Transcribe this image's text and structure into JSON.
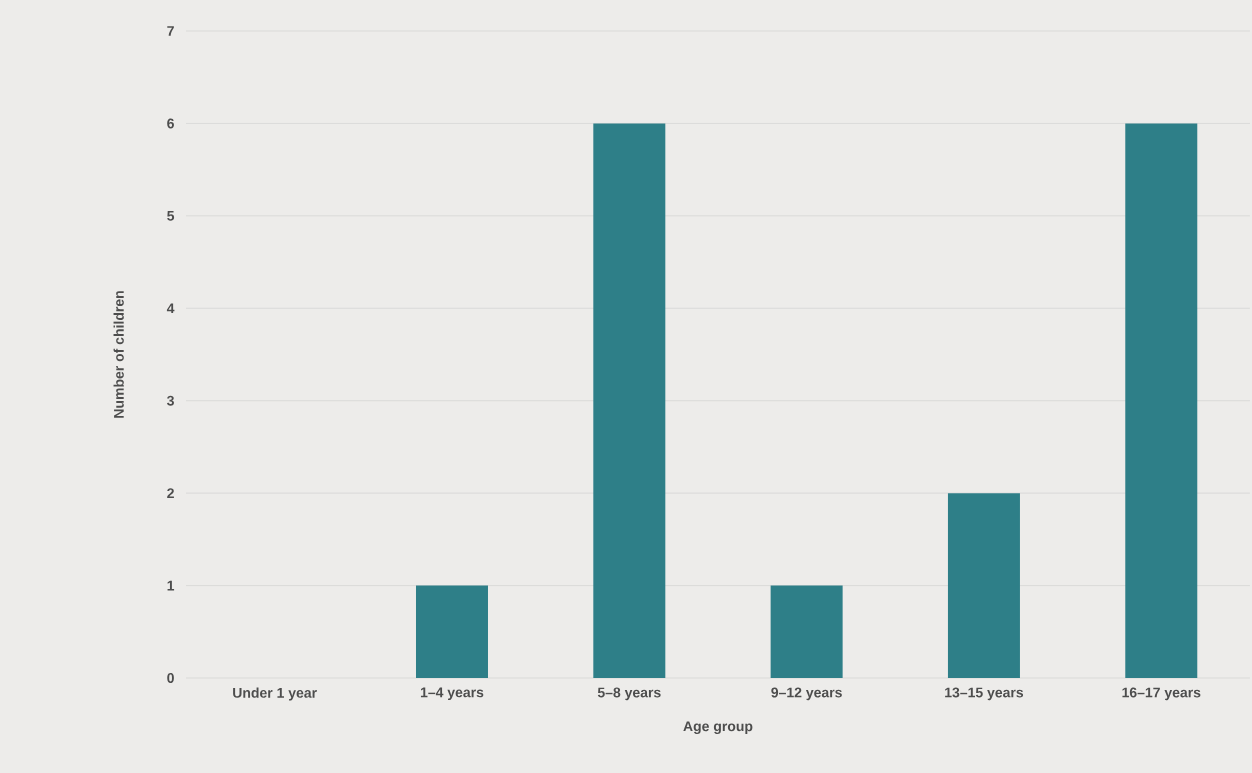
{
  "chart_data": {
    "type": "bar",
    "categories": [
      "Under 1 year",
      "1–4 years",
      "5–8 years",
      "9–12 years",
      "13–15 years",
      "16–17 years"
    ],
    "values": [
      0,
      1,
      6,
      1,
      2,
      6
    ],
    "color": "#2e7f88",
    "xlabel": "Age group",
    "ylabel": "Number of children",
    "ylim": [
      0,
      7
    ],
    "yticks": [
      0,
      1,
      2,
      3,
      4,
      5,
      6,
      7
    ],
    "grid": "y"
  }
}
